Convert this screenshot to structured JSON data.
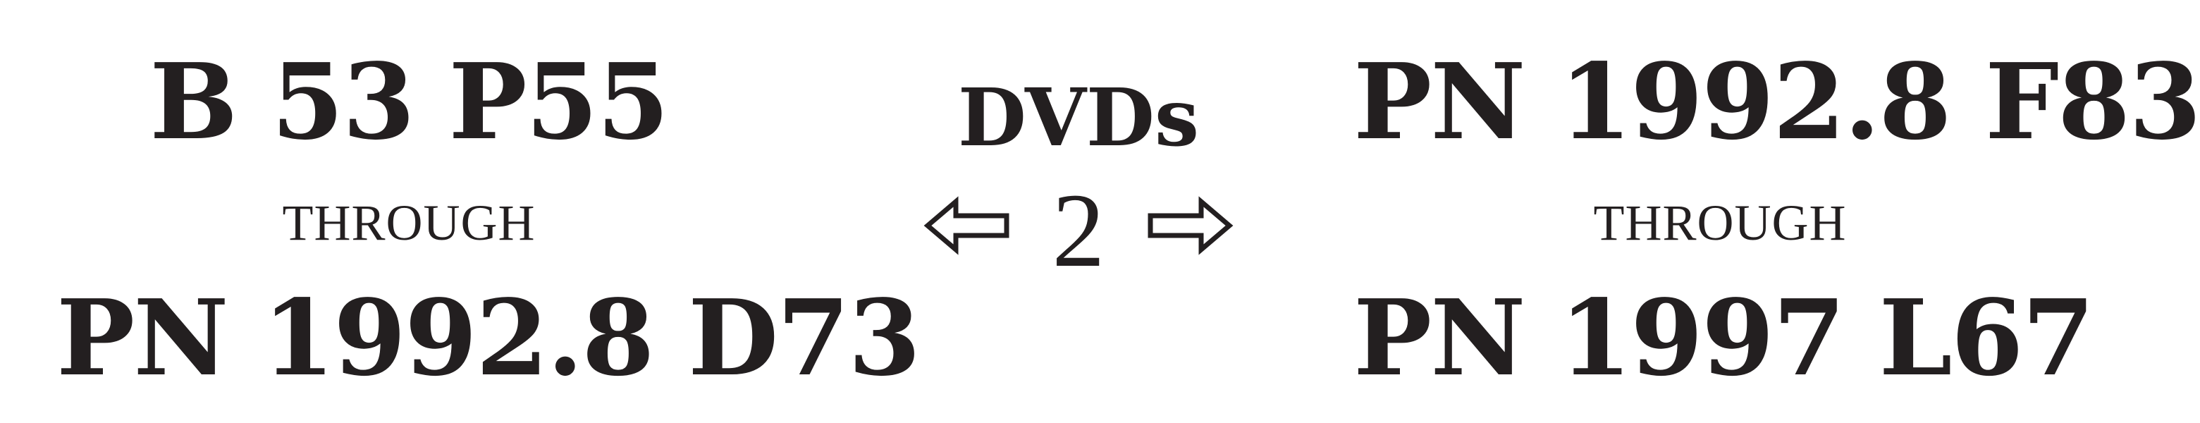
{
  "left": {
    "range_start": "B 53 P55",
    "connector": "THROUGH",
    "range_end": "PN 1992.8 D73"
  },
  "center": {
    "media_type": "DVDs",
    "floor": "2",
    "left_arrow_icon": "left-arrow-icon",
    "right_arrow_icon": "right-arrow-icon"
  },
  "right": {
    "range_start": "PN 1992.8 F83",
    "connector": "THROUGH",
    "range_end": "PN 1997 L67"
  },
  "colors": {
    "text": "#231f20",
    "background": "#ffffff"
  }
}
